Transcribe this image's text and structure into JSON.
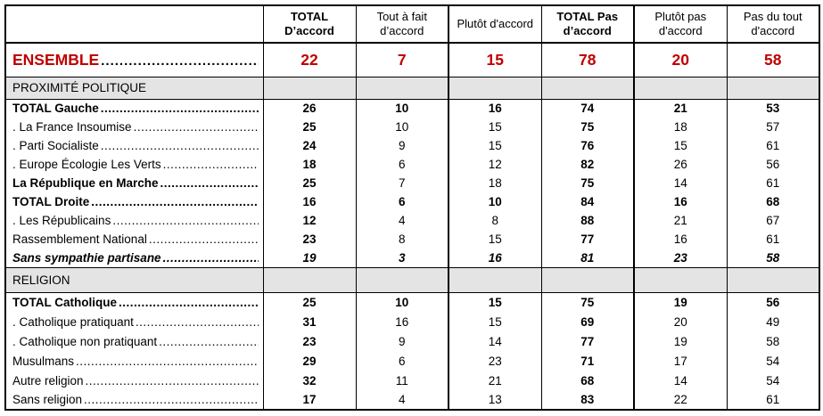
{
  "colors": {
    "accent_red": "#C00000",
    "section_band_bg": "#E4E4E4",
    "border": "#000000"
  },
  "t": {
    "columns": [
      {
        "label": "TOTAL D’accord"
      },
      {
        "label": "Tout à fait d’accord"
      },
      {
        "label": "Plutôt d'accord"
      },
      {
        "label": "TOTAL Pas d’accord"
      },
      {
        "label": "Plutôt pas d'accord"
      },
      {
        "label": "Pas du tout d'accord"
      }
    ],
    "ensemble": {
      "label": "ENSEMBLE",
      "values": [
        22,
        7,
        15,
        78,
        20,
        58
      ]
    },
    "sections": [
      {
        "title": "PROXIMITÉ POLITIQUE",
        "rows": [
          {
            "label": "TOTAL Gauche",
            "values": [
              26,
              10,
              16,
              74,
              21,
              53
            ]
          },
          {
            "label": ". La France Insoumise",
            "values": [
              25,
              10,
              15,
              75,
              18,
              57
            ]
          },
          {
            "label": ". Parti Socialiste",
            "values": [
              24,
              9,
              15,
              76,
              15,
              61
            ]
          },
          {
            "label": ". Europe Écologie Les Verts",
            "values": [
              18,
              6,
              12,
              82,
              26,
              56
            ]
          },
          {
            "label": "La République en Marche",
            "values": [
              25,
              7,
              18,
              75,
              14,
              61
            ]
          },
          {
            "label": "TOTAL Droite",
            "values": [
              16,
              6,
              10,
              84,
              16,
              68
            ]
          },
          {
            "label": ". Les Républicains",
            "values": [
              12,
              4,
              8,
              88,
              21,
              67
            ]
          },
          {
            "label": "Rassemblement National",
            "values": [
              23,
              8,
              15,
              77,
              16,
              61
            ]
          },
          {
            "label": "Sans sympathie partisane",
            "values": [
              19,
              3,
              16,
              81,
              23,
              58
            ]
          }
        ]
      },
      {
        "title": "RELIGION",
        "rows": [
          {
            "label": "TOTAL Catholique",
            "values": [
              25,
              10,
              15,
              75,
              19,
              56
            ]
          },
          {
            "label": ". Catholique pratiquant",
            "values": [
              31,
              16,
              15,
              69,
              20,
              49
            ]
          },
          {
            "label": ". Catholique non pratiquant",
            "values": [
              23,
              9,
              14,
              77,
              19,
              58
            ]
          },
          {
            "label": "Musulmans",
            "values": [
              29,
              6,
              23,
              71,
              17,
              54
            ]
          },
          {
            "label": "Autre religion",
            "values": [
              32,
              11,
              21,
              68,
              14,
              54
            ]
          },
          {
            "label": "Sans religion",
            "values": [
              17,
              4,
              13,
              83,
              22,
              61
            ]
          }
        ]
      }
    ]
  }
}
